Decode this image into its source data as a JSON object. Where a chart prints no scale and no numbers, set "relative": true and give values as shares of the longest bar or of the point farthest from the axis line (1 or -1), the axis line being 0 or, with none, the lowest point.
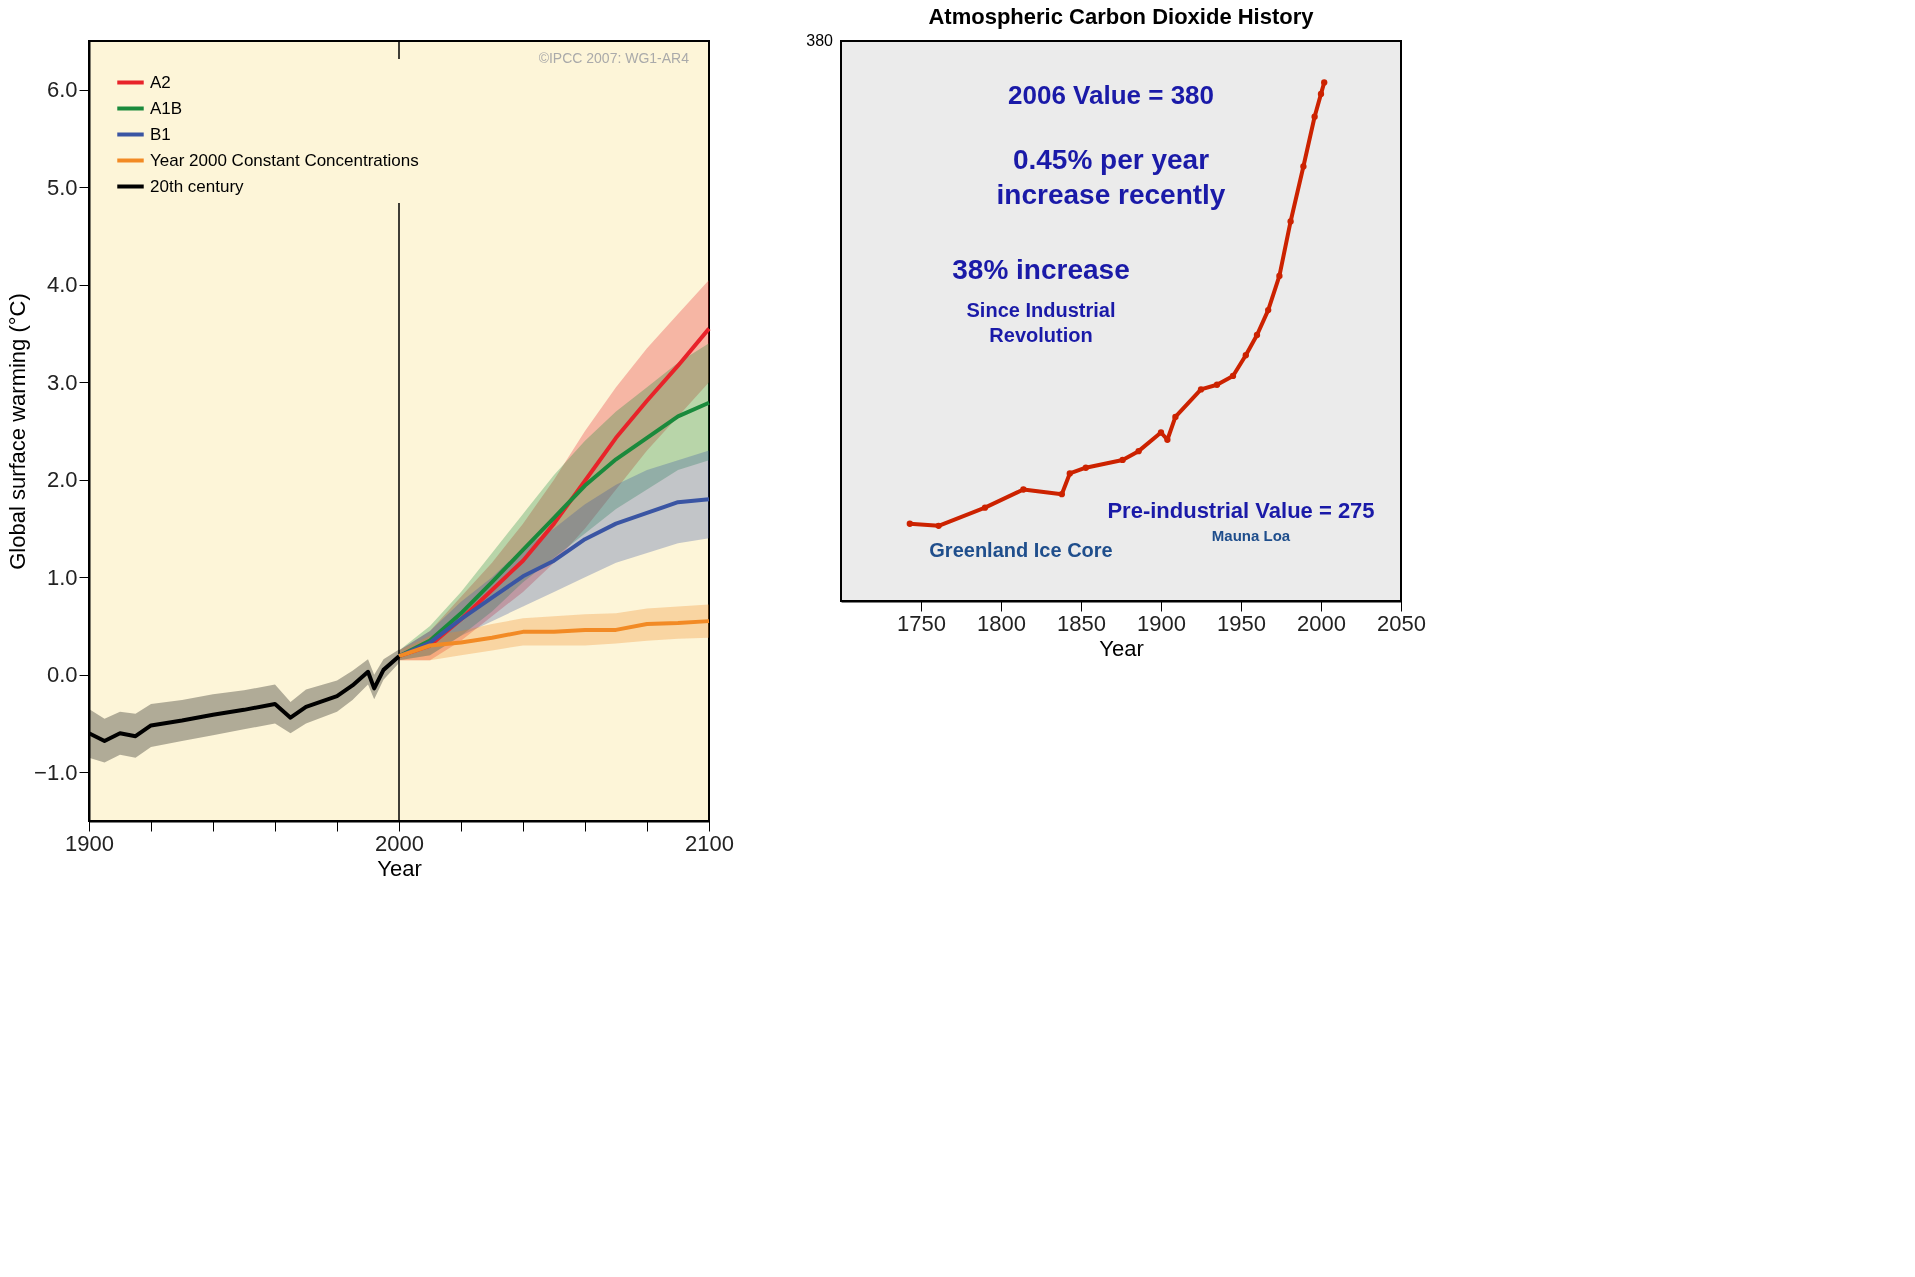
{
  "chart_data": [
    {
      "type": "line",
      "xlabel": "Year",
      "ylabel": "Global surface warming (°C)",
      "xlim": [
        1900,
        2100
      ],
      "ylim": [
        -1.5,
        6.5
      ],
      "xticks": [
        1900,
        {
          "value": 1920,
          "label": null
        },
        {
          "value": 1940,
          "label": null
        },
        {
          "value": 1960,
          "label": null
        },
        {
          "value": 1980,
          "label": null
        },
        2000,
        {
          "value": 2020,
          "label": null
        },
        {
          "value": 2040,
          "label": null
        },
        {
          "value": 2060,
          "label": null
        },
        {
          "value": 2080,
          "label": null
        },
        2100
      ],
      "yticks": [
        {
          "value": -1,
          "label": "−1.0"
        },
        {
          "value": 0,
          "label": "0.0"
        },
        {
          "value": 1,
          "label": "1.0"
        },
        {
          "value": 2,
          "label": "2.0"
        },
        {
          "value": 3,
          "label": "3.0"
        },
        {
          "value": 4,
          "label": "4.0"
        },
        {
          "value": 5,
          "label": "5.0"
        },
        {
          "value": 6,
          "label": "6.0"
        }
      ],
      "grid": false,
      "legend": "top left",
      "line_style": "solid",
      "marker": "none",
      "ref_lines": [
        {
          "axis": "x",
          "value": 2000,
          "color": "#000000"
        }
      ],
      "annotations": [
        "©IPCC 2007: WG1-AR4"
      ],
      "series": [
        {
          "name": "A2",
          "color": "#e8232a",
          "x": [
            2000,
            2010,
            2020,
            2030,
            2040,
            2050,
            2060,
            2070,
            2080,
            2090,
            2100
          ],
          "values": [
            0.19,
            0.3,
            0.57,
            0.87,
            1.17,
            1.55,
            1.99,
            2.43,
            2.81,
            3.17,
            3.55
          ],
          "lower": [
            0.15,
            0.15,
            0.35,
            0.6,
            0.85,
            1.15,
            1.5,
            1.9,
            2.3,
            2.65,
            3.0
          ],
          "upper": [
            0.25,
            0.45,
            0.8,
            1.15,
            1.55,
            2.0,
            2.5,
            2.95,
            3.35,
            3.7,
            4.05
          ]
        },
        {
          "name": "A1B",
          "color": "#1a8a3c",
          "x": [
            2000,
            2010,
            2020,
            2030,
            2040,
            2050,
            2060,
            2070,
            2080,
            2090,
            2100
          ],
          "values": [
            0.19,
            0.35,
            0.63,
            0.95,
            1.28,
            1.61,
            1.94,
            2.21,
            2.43,
            2.65,
            2.79
          ],
          "lower": [
            0.15,
            0.2,
            0.4,
            0.65,
            0.95,
            1.2,
            1.45,
            1.7,
            1.9,
            2.1,
            2.2
          ],
          "upper": [
            0.25,
            0.5,
            0.85,
            1.25,
            1.65,
            2.05,
            2.4,
            2.7,
            2.95,
            3.2,
            3.4
          ]
        },
        {
          "name": "B1",
          "color": "#3a55a3",
          "x": [
            2000,
            2010,
            2020,
            2030,
            2040,
            2050,
            2060,
            2070,
            2080,
            2090,
            2100
          ],
          "values": [
            0.19,
            0.33,
            0.57,
            0.79,
            1.01,
            1.17,
            1.39,
            1.55,
            1.66,
            1.77,
            1.8
          ],
          "lower": [
            0.15,
            0.2,
            0.4,
            0.55,
            0.7,
            0.85,
            1.0,
            1.15,
            1.25,
            1.35,
            1.4
          ],
          "upper": [
            0.25,
            0.45,
            0.75,
            1.0,
            1.3,
            1.5,
            1.75,
            1.95,
            2.1,
            2.2,
            2.3
          ]
        },
        {
          "name": "Year 2000 Constant Concentrations",
          "color": "#f28a25",
          "x": [
            2000,
            2010,
            2020,
            2030,
            2040,
            2050,
            2060,
            2070,
            2080,
            2090,
            2100
          ],
          "values": [
            0.19,
            0.3,
            0.33,
            0.38,
            0.44,
            0.44,
            0.46,
            0.46,
            0.52,
            0.53,
            0.55
          ],
          "lower": [
            0.15,
            0.15,
            0.2,
            0.25,
            0.3,
            0.3,
            0.3,
            0.32,
            0.35,
            0.37,
            0.38
          ],
          "upper": [
            0.25,
            0.4,
            0.45,
            0.52,
            0.58,
            0.6,
            0.62,
            0.63,
            0.68,
            0.7,
            0.72
          ]
        },
        {
          "name": "20th century",
          "color": "#000000",
          "x": [
            1900,
            1905,
            1910,
            1915,
            1920,
            1930,
            1940,
            1950,
            1960,
            1965,
            1970,
            1980,
            1985,
            1990,
            1992,
            1995,
            2000
          ],
          "values": [
            -0.6,
            -0.68,
            -0.6,
            -0.63,
            -0.52,
            -0.47,
            -0.41,
            -0.36,
            -0.3,
            -0.44,
            -0.33,
            -0.22,
            -0.11,
            0.03,
            -0.14,
            0.05,
            0.19
          ],
          "lower": [
            -0.85,
            -0.9,
            -0.82,
            -0.85,
            -0.74,
            -0.68,
            -0.62,
            -0.56,
            -0.5,
            -0.6,
            -0.5,
            -0.38,
            -0.26,
            -0.1,
            -0.25,
            -0.05,
            0.12
          ],
          "upper": [
            -0.35,
            -0.45,
            -0.38,
            -0.4,
            -0.3,
            -0.26,
            -0.2,
            -0.16,
            -0.1,
            -0.28,
            -0.15,
            -0.06,
            0.04,
            0.16,
            0.0,
            0.16,
            0.26
          ]
        }
      ]
    },
    {
      "type": "line",
      "title": "Atmospheric Carbon Dioxide History",
      "xlabel": "Year",
      "relative": true,
      "xlim": [
        1700,
        2050
      ],
      "xticks": [
        1750,
        1800,
        1850,
        1900,
        1950,
        2000,
        2050
      ],
      "grid": false,
      "legend": false,
      "marker": "circle",
      "line_style": "solid",
      "annotations": [
        "380",
        "2006 Value = 380",
        "0.45% per year increase recently",
        "38% increase",
        "Since Industrial Revolution",
        "Pre-industrial Value = 275",
        "Greenland Ice Core",
        "Mauna Loa"
      ],
      "series": [
        {
          "color": "#cc2200",
          "x": [
            1743,
            1761,
            1790,
            1814,
            1838,
            1843,
            1853,
            1876,
            1886,
            1900,
            1904,
            1909,
            1925,
            1935,
            1945,
            1953,
            1960,
            1967,
            1974,
            1981,
            1989,
            1996,
            2000,
            2002
          ],
          "values": [
            0.149,
            0.145,
            0.18,
            0.215,
            0.206,
            0.246,
            0.257,
            0.272,
            0.289,
            0.325,
            0.311,
            0.355,
            0.408,
            0.417,
            0.434,
            0.474,
            0.513,
            0.561,
            0.627,
            0.732,
            0.838,
            0.934,
            0.978,
            1.0
          ]
        }
      ]
    }
  ]
}
